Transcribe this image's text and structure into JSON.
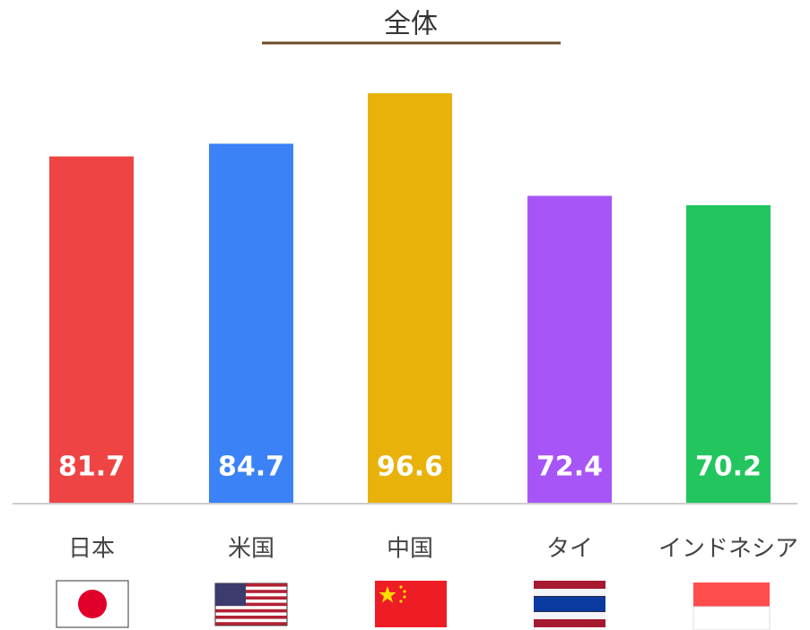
{
  "chart_data": {
    "type": "bar",
    "title": "全体",
    "categories": [
      "日本",
      "米国",
      "中国",
      "タイ",
      "インドネシア"
    ],
    "values": [
      81.7,
      84.7,
      96.6,
      72.4,
      70.2
    ],
    "colors": [
      "#ef4444",
      "#3b82f6",
      "#e8b20a",
      "#a855f7",
      "#22c55e"
    ],
    "ylim": [
      0,
      100
    ]
  }
}
